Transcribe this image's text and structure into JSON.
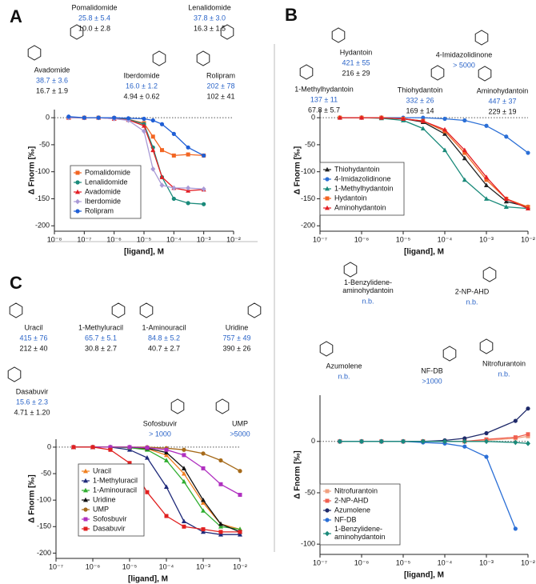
{
  "panels": [
    {
      "letter": "A",
      "compounds": [
        {
          "name": "Pomalidomide",
          "kd": "25.8 ± 5.4",
          "kd2": "10.0 ± 2.8"
        },
        {
          "name": "Lenalidomide",
          "kd": "37.8 ± 3.0",
          "kd2": "16.3 ± 1.5"
        },
        {
          "name": "Avadomide",
          "kd": "38.7 ± 3.6",
          "kd2": "16.7 ± 1.9"
        },
        {
          "name": "Iberdomide",
          "kd": "16.0 ± 1.2",
          "kd2": "4.94 ± 0.62"
        },
        {
          "name": "Rolipram",
          "kd": "202 ± 78",
          "kd2": "102 ± 41"
        }
      ]
    },
    {
      "letter": "B",
      "compounds": [
        {
          "name": "Hydantoin",
          "kd": "421 ± 55",
          "kd2": "216 ± 29"
        },
        {
          "name": "4-Imidazolidinone",
          "kd": "> 5000"
        },
        {
          "name": "1-Methylhydantoin",
          "kd": "137 ± 11",
          "kd2": "67.8 ± 5.7"
        },
        {
          "name": "Thiohydantoin",
          "kd": "332 ± 26",
          "kd2": "169 ± 14"
        },
        {
          "name": "Aminohydantoin",
          "kd": "447 ± 37",
          "kd2": "229 ± 19"
        }
      ]
    },
    {
      "letter": "C",
      "compounds": [
        {
          "name": "Uracil",
          "kd": "415 ± 76",
          "kd2": "212 ± 40"
        },
        {
          "name": "1-Methyluracil",
          "kd": "65.7 ± 5.1",
          "kd2": "30.8 ± 2.7"
        },
        {
          "name": "1-Aminouracil",
          "kd": "84.8 ± 5.2",
          "kd2": "40.7 ± 2.7"
        },
        {
          "name": "Uridine",
          "kd": "757 ± 49",
          "kd2": "390 ± 26"
        },
        {
          "name": "Dasabuvir",
          "kd": "15.6 ± 2.3",
          "kd2": "4.71 ± 1.20"
        },
        {
          "name": "Sofosbuvir",
          "kd": "> 1000"
        },
        {
          "name": "UMP",
          "kd": ">5000"
        }
      ]
    },
    {
      "compounds": [
        {
          "name": "1-Benzylidene-aminohydantoin",
          "kd": "n.b."
        },
        {
          "name": "2-NP-AHD",
          "kd": "n.b."
        },
        {
          "name": "Azumolene",
          "kd": "n.b."
        },
        {
          "name": "NF-DB",
          "kd": ">1000"
        },
        {
          "name": "Nitrofurantoin",
          "kd": "n.b."
        }
      ]
    }
  ],
  "chart_data": [
    {
      "type": "line",
      "x_label": "[ligand], M",
      "y_label": "Δ Fnorm [‰]",
      "log_x": true,
      "zero_line": true,
      "xlim": [
        1e-08,
        0.01
      ],
      "xticks": [
        {
          "value": 1e-08,
          "label": "10⁻⁸"
        },
        {
          "value": 1e-07,
          "label": "10⁻⁷"
        },
        {
          "value": 1e-06,
          "label": "10⁻⁶"
        },
        {
          "value": 1e-05,
          "label": "10⁻⁵"
        },
        {
          "value": 0.0001,
          "label": "10⁻⁴"
        },
        {
          "value": 0.001,
          "label": "10⁻³"
        },
        {
          "value": 0.01,
          "label": "10⁻²"
        }
      ],
      "ylim": [
        -210,
        15
      ],
      "yticks": [
        -200,
        -150,
        -100,
        -50,
        0
      ],
      "x": [
        3e-08,
        1e-07,
        3e-07,
        1e-06,
        3e-06,
        1e-05,
        2e-05,
        4e-05,
        0.0001,
        0.0003,
        0.001
      ],
      "series": [
        {
          "name": "Pomalidomide",
          "color": "#f26522",
          "marker": "square",
          "values": [
            0,
            0,
            0,
            -1,
            -3,
            -10,
            -35,
            -60,
            -70,
            -68,
            -70
          ]
        },
        {
          "name": "Lenalidomide",
          "color": "#1a8a7a",
          "marker": "circle",
          "values": [
            0,
            0,
            0,
            -1,
            -3,
            -12,
            -55,
            -110,
            -150,
            -158,
            -160
          ]
        },
        {
          "name": "Avadomide",
          "color": "#e31e24",
          "marker": "triangle",
          "values": [
            0,
            0,
            0,
            -2,
            -4,
            -15,
            -60,
            -110,
            -130,
            -135,
            -133
          ]
        },
        {
          "name": "Iberdomide",
          "color": "#a99ad6",
          "marker": "diamond",
          "values": [
            0,
            0,
            0,
            -2,
            -5,
            -25,
            -95,
            -125,
            -130,
            -130,
            -132
          ]
        },
        {
          "name": "Rolipram",
          "color": "#1f5fd6",
          "marker": "circle",
          "values": [
            2,
            0,
            0,
            0,
            -1,
            -2,
            -5,
            -12,
            -30,
            -55,
            -70
          ]
        }
      ]
    },
    {
      "type": "line",
      "x_label": "[ligand], M",
      "y_label": "Δ Fnorm [‰]",
      "log_x": true,
      "zero_line": true,
      "xlim": [
        1e-07,
        0.01
      ],
      "xticks": [
        {
          "value": 1e-07,
          "label": "10⁻⁷"
        },
        {
          "value": 1e-06,
          "label": "10⁻⁶"
        },
        {
          "value": 1e-05,
          "label": "10⁻⁵"
        },
        {
          "value": 0.0001,
          "label": "10⁻⁴"
        },
        {
          "value": 0.001,
          "label": "10⁻³"
        },
        {
          "value": 0.01,
          "label": "10⁻²"
        }
      ],
      "ylim": [
        -210,
        15
      ],
      "yticks": [
        -200,
        -150,
        -100,
        -50,
        0
      ],
      "x": [
        3e-07,
        1e-06,
        3e-06,
        1e-05,
        3e-05,
        0.0001,
        0.0003,
        0.001,
        0.003,
        0.01
      ],
      "series": [
        {
          "name": "Thiohydantoin",
          "color": "#222222",
          "marker": "triangle",
          "values": [
            0,
            0,
            0,
            -2,
            -8,
            -30,
            -75,
            -125,
            -155,
            -165
          ]
        },
        {
          "name": "4-Imidazolidinone",
          "color": "#2b6fd6",
          "marker": "circle",
          "values": [
            0,
            0,
            0,
            0,
            0,
            -2,
            -5,
            -15,
            -35,
            -65
          ]
        },
        {
          "name": "1-Methylhydantoin",
          "color": "#1a8a7a",
          "marker": "triangle",
          "values": [
            0,
            0,
            -1,
            -5,
            -20,
            -60,
            -115,
            -150,
            -165,
            -168
          ]
        },
        {
          "name": "Hydantoin",
          "color": "#f26522",
          "marker": "square",
          "values": [
            0,
            0,
            0,
            -2,
            -6,
            -25,
            -65,
            -115,
            -150,
            -165
          ]
        },
        {
          "name": "Aminohydantoin",
          "color": "#e31e24",
          "marker": "triangle",
          "values": [
            0,
            0,
            0,
            -2,
            -6,
            -22,
            -60,
            -110,
            -150,
            -168
          ]
        }
      ]
    },
    {
      "type": "line",
      "x_label": "[ligand], M",
      "y_label": "Δ Fnorm [‰]",
      "log_x": true,
      "zero_line": true,
      "xlim": [
        1e-07,
        0.01
      ],
      "xticks": [
        {
          "value": 1e-07,
          "label": "10⁻⁷"
        },
        {
          "value": 1e-06,
          "label": "10⁻⁶"
        },
        {
          "value": 1e-05,
          "label": "10⁻⁵"
        },
        {
          "value": 0.0001,
          "label": "10⁻⁴"
        },
        {
          "value": 0.001,
          "label": "10⁻³"
        },
        {
          "value": 0.01,
          "label": "10⁻²"
        }
      ],
      "ylim": [
        -210,
        15
      ],
      "yticks": [
        -200,
        -150,
        -100,
        -50,
        0
      ],
      "x": [
        3e-07,
        1e-06,
        3e-06,
        1e-05,
        3e-05,
        0.0001,
        0.0003,
        0.001,
        0.003,
        0.01
      ],
      "series": [
        {
          "name": "Uracil",
          "color": "#f08020",
          "marker": "triangle",
          "values": [
            0,
            0,
            0,
            0,
            -3,
            -15,
            -50,
            -105,
            -145,
            -155
          ]
        },
        {
          "name": "1-Methyluracil",
          "color": "#1f2a7a",
          "marker": "triangle",
          "values": [
            0,
            0,
            0,
            -5,
            -20,
            -75,
            -140,
            -160,
            -165,
            -165
          ]
        },
        {
          "name": "1-Aminouracil",
          "color": "#2fae2f",
          "marker": "triangle",
          "values": [
            0,
            0,
            0,
            -1,
            -5,
            -25,
            -65,
            -120,
            -150,
            -155
          ]
        },
        {
          "name": "Uridine",
          "color": "#111111",
          "marker": "triangle",
          "values": [
            0,
            0,
            0,
            0,
            -2,
            -10,
            -40,
            -100,
            -145,
            -160
          ]
        },
        {
          "name": "UMP",
          "color": "#a66a1a",
          "marker": "circle",
          "values": [
            0,
            0,
            0,
            0,
            0,
            -2,
            -5,
            -12,
            -25,
            -45
          ]
        },
        {
          "name": "Sofosbuvir",
          "color": "#b030c0",
          "marker": "square",
          "values": [
            0,
            0,
            0,
            0,
            -1,
            -5,
            -15,
            -40,
            -70,
            -90
          ]
        },
        {
          "name": "Dasabuvir",
          "color": "#e02020",
          "marker": "square",
          "values": [
            0,
            0,
            -5,
            -30,
            -85,
            -130,
            -150,
            -155,
            -160,
            -160
          ]
        }
      ]
    },
    {
      "type": "line",
      "x_label": "[ligand], M",
      "y_label": "Δ Fnorm [‰]",
      "log_x": true,
      "zero_line": true,
      "xlim": [
        1e-07,
        0.01
      ],
      "xticks": [
        {
          "value": 1e-07,
          "label": "10⁻⁷"
        },
        {
          "value": 1e-06,
          "label": "10⁻⁶"
        },
        {
          "value": 1e-05,
          "label": "10⁻⁵"
        },
        {
          "value": 0.0001,
          "label": "10⁻⁴"
        },
        {
          "value": 0.001,
          "label": "10⁻³"
        },
        {
          "value": 0.01,
          "label": "10⁻²"
        }
      ],
      "ylim": [
        -110,
        45
      ],
      "yticks": [
        -100,
        -50,
        0
      ],
      "x": [
        3e-07,
        1e-06,
        3e-06,
        1e-05,
        3e-05,
        0.0001,
        0.0003,
        0.001,
        0.005,
        0.01
      ],
      "series": [
        {
          "name": "Nitrofurantoin",
          "color": "#f0a080",
          "marker": "square",
          "values": [
            0,
            0,
            0,
            0,
            0,
            0,
            0,
            1,
            3,
            5
          ]
        },
        {
          "name": "2-NP-AHD",
          "color": "#f06050",
          "marker": "square",
          "values": [
            0,
            0,
            0,
            0,
            0,
            0,
            0,
            2,
            4,
            7
          ]
        },
        {
          "name": "Azumolene",
          "color": "#1f2a6a",
          "marker": "circle",
          "values": [
            0,
            0,
            0,
            0,
            0,
            1,
            3,
            8,
            20,
            32
          ]
        },
        {
          "name": "NF-DB",
          "color": "#2b6fd6",
          "marker": "circle",
          "values": [
            0,
            0,
            0,
            0,
            -1,
            -2,
            -5,
            -15,
            -85,
            null
          ]
        },
        {
          "name": "1-Benzylidene-aminohydantoin",
          "color": "#1a8a7a",
          "marker": "diamond",
          "values": [
            0,
            0,
            0,
            0,
            0,
            0,
            0,
            0,
            -1,
            -2
          ]
        }
      ]
    }
  ]
}
